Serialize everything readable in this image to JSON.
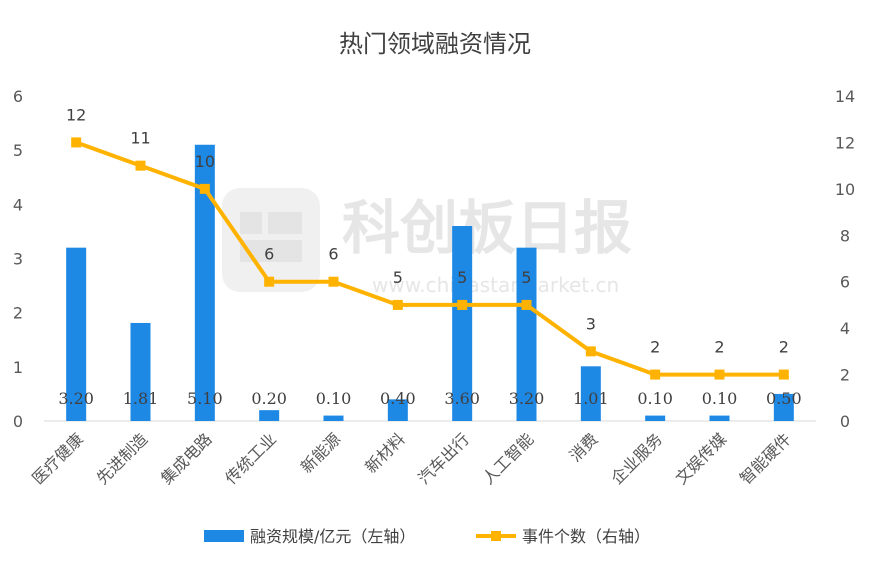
{
  "chart_data": {
    "type": "bar",
    "title": "热门领域融资情况",
    "categories": [
      "医疗健康",
      "先进制造",
      "集成电路",
      "传统工业",
      "新能源",
      "新材料",
      "汽车出行",
      "人工智能",
      "消费",
      "企业服务",
      "文娱传媒",
      "智能硬件"
    ],
    "series": [
      {
        "name": "融资规模/亿元（左轴）",
        "type": "bar",
        "axis": "left",
        "color": "#1e88e5",
        "values": [
          3.2,
          1.81,
          5.1,
          0.2,
          0.1,
          0.4,
          3.6,
          3.2,
          1.01,
          0.1,
          0.1,
          0.5
        ],
        "labels": [
          "3.20",
          "1.81",
          "5.10",
          "0.20",
          "0.10",
          "0.40",
          "3.60",
          "3.20",
          "1.01",
          "0.10",
          "0.10",
          "0.50"
        ]
      },
      {
        "name": "事件个数（右轴）",
        "type": "line",
        "axis": "right",
        "color": "#ffb300",
        "values": [
          12,
          11,
          10,
          6,
          6,
          5,
          5,
          5,
          3,
          2,
          2,
          2
        ],
        "labels": [
          "12",
          "11",
          "10",
          "6",
          "6",
          "5",
          "5",
          "5",
          "3",
          "2",
          "2",
          "2"
        ]
      }
    ],
    "y_left": {
      "range": [
        0,
        6
      ],
      "ticks": [
        "0",
        "1",
        "2",
        "3",
        "4",
        "5",
        "6"
      ]
    },
    "y_right": {
      "range": [
        0,
        14
      ],
      "ticks": [
        "0",
        "2",
        "4",
        "6",
        "8",
        "10",
        "12",
        "14"
      ]
    },
    "grid": false,
    "legend": "bottom"
  },
  "watermark": {
    "brand": "科创板日报",
    "url": "www.chinastarmarket.cn"
  }
}
